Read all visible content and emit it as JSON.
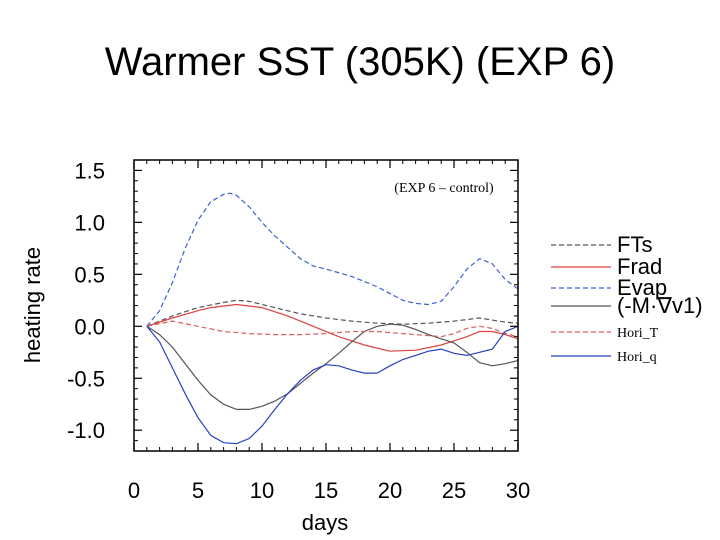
{
  "slide": {
    "title": "Warmer SST (305K) (EXP 6)"
  },
  "chart_data": {
    "type": "line",
    "title": "",
    "annotation": "(EXP 6 – control)",
    "xlabel": "days",
    "ylabel": "heating rate",
    "xlim": [
      0,
      30
    ],
    "ylim": [
      -1.2,
      1.6
    ],
    "xticks": [
      "0",
      "5",
      "10",
      "15",
      "20",
      "25",
      "30"
    ],
    "yticks": [
      "1.5",
      "1.0",
      "0.5",
      "0.0",
      "-0.5",
      "-1.0"
    ],
    "grid": false,
    "legend_position": "right, outside plot",
    "series": [
      {
        "name": "FTs",
        "color": "#555555",
        "dash": "dashed",
        "x": [
          1,
          3,
          5,
          7,
          8,
          9,
          11,
          13,
          15,
          17,
          19,
          21,
          23,
          25,
          27,
          28,
          29,
          30
        ],
        "y": [
          0.0,
          0.1,
          0.18,
          0.23,
          0.25,
          0.24,
          0.18,
          0.12,
          0.08,
          0.05,
          0.03,
          0.02,
          0.03,
          0.05,
          0.08,
          0.06,
          0.04,
          0.03
        ]
      },
      {
        "name": "Frad",
        "color": "#e04040",
        "dash": "solid",
        "x": [
          1,
          3,
          5,
          6,
          8,
          10,
          12,
          14,
          16,
          18,
          20,
          22,
          24,
          26,
          27,
          28,
          29,
          30
        ],
        "y": [
          0.0,
          0.08,
          0.15,
          0.18,
          0.21,
          0.18,
          0.1,
          0.0,
          -0.1,
          -0.18,
          -0.24,
          -0.23,
          -0.18,
          -0.1,
          -0.05,
          -0.05,
          -0.08,
          -0.12
        ]
      },
      {
        "name": "Evap",
        "color": "#4060d0",
        "dash": "dashed",
        "x": [
          1,
          2,
          3,
          4,
          5,
          6,
          7,
          7.5,
          8,
          9,
          10,
          11,
          12,
          13,
          14,
          15,
          17,
          19,
          21,
          22,
          23,
          24,
          25,
          26,
          27,
          28,
          29,
          30
        ],
        "y": [
          0.0,
          0.15,
          0.42,
          0.75,
          1.02,
          1.2,
          1.27,
          1.28,
          1.26,
          1.15,
          1.0,
          0.87,
          0.76,
          0.65,
          0.58,
          0.55,
          0.48,
          0.38,
          0.25,
          0.22,
          0.21,
          0.24,
          0.38,
          0.55,
          0.65,
          0.6,
          0.45,
          0.36
        ]
      },
      {
        "name": "(-M·∇v1)",
        "color": "#555555",
        "dash": "solid",
        "x": [
          1,
          2,
          3,
          4,
          5,
          6,
          7,
          8,
          9,
          10,
          11,
          12,
          13,
          14,
          15,
          16,
          17,
          18,
          19,
          20,
          21,
          22,
          23,
          24,
          25,
          26,
          27,
          28,
          29,
          30
        ],
        "y": [
          0.0,
          -0.08,
          -0.2,
          -0.36,
          -0.52,
          -0.66,
          -0.75,
          -0.8,
          -0.8,
          -0.77,
          -0.72,
          -0.65,
          -0.55,
          -0.45,
          -0.36,
          -0.26,
          -0.15,
          -0.05,
          0.0,
          0.02,
          0.01,
          -0.03,
          -0.08,
          -0.12,
          -0.16,
          -0.25,
          -0.35,
          -0.38,
          -0.36,
          -0.33
        ]
      },
      {
        "name": "Hori_T",
        "color": "#d86060",
        "dash": "dashed",
        "x": [
          1,
          3,
          5,
          7,
          9,
          11,
          13,
          15,
          17,
          19,
          21,
          23,
          24,
          25,
          26,
          27,
          28,
          29,
          30
        ],
        "y": [
          0.0,
          0.05,
          0.0,
          -0.05,
          -0.07,
          -0.08,
          -0.08,
          -0.07,
          -0.05,
          -0.05,
          -0.07,
          -0.09,
          -0.1,
          -0.07,
          -0.02,
          0.0,
          -0.02,
          -0.07,
          -0.1
        ]
      },
      {
        "name": "Hori_q",
        "color": "#2840c0",
        "dash": "solid",
        "x": [
          1,
          2,
          3,
          4,
          5,
          6,
          7,
          8,
          9,
          10,
          11,
          12,
          13,
          14,
          15,
          16,
          17,
          18,
          19,
          20,
          21,
          22,
          23,
          24,
          25,
          26,
          27,
          28,
          29,
          30
        ],
        "y": [
          0.0,
          -0.15,
          -0.4,
          -0.65,
          -0.88,
          -1.05,
          -1.12,
          -1.13,
          -1.08,
          -0.96,
          -0.8,
          -0.65,
          -0.52,
          -0.42,
          -0.37,
          -0.38,
          -0.42,
          -0.45,
          -0.45,
          -0.38,
          -0.32,
          -0.28,
          -0.24,
          -0.22,
          -0.26,
          -0.28,
          -0.25,
          -0.22,
          -0.05,
          0.0
        ]
      }
    ]
  }
}
